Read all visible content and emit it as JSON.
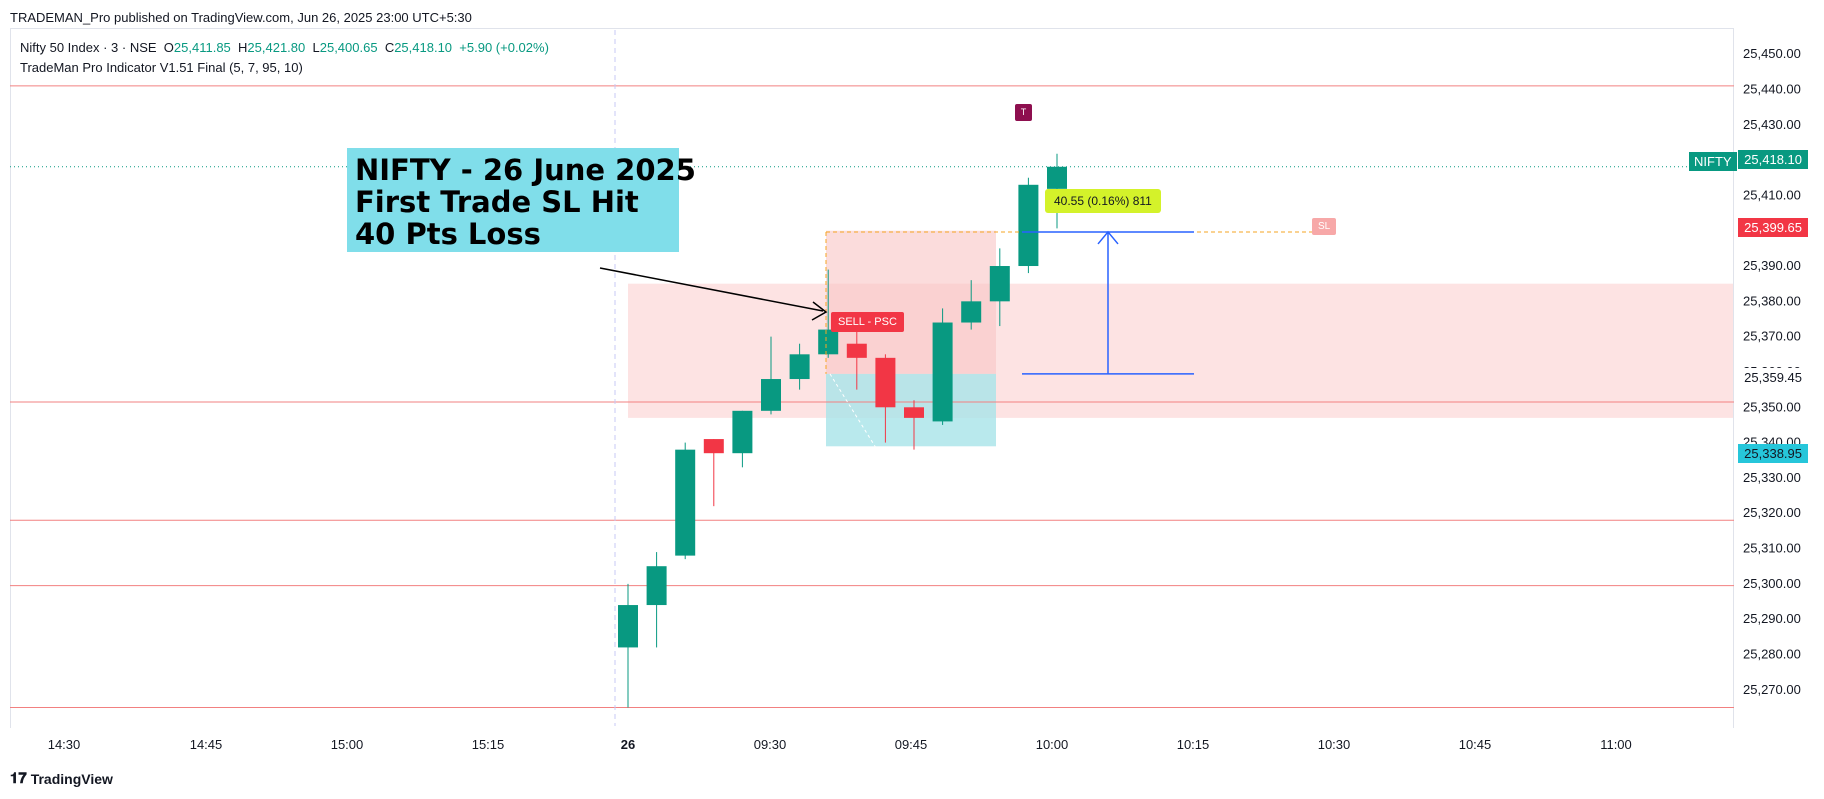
{
  "header": {
    "published_line": "TRADEMAN_Pro published on TradingView.com, Jun 26, 2025 23:00 UTC+5:30"
  },
  "legend": {
    "symbol": "Nifty 50 Index · 3 · NSE",
    "o_label": "O",
    "o_value": "25,411.85",
    "h_label": "H",
    "h_value": "25,421.80",
    "l_label": "L",
    "l_value": "25,400.65",
    "c_label": "C",
    "c_value": "25,418.10",
    "change": "+5.90 (+0.02%)",
    "indicator": "TradeMan Pro Indicator V1.51 Final (5, 7, 95, 10)"
  },
  "annotation": {
    "line1": "NIFTY - 26 June 2025",
    "line2": "First Trade SL Hit",
    "line3": "40 Pts Loss",
    "bg_color": "#80deea"
  },
  "tags": {
    "sell": "SELL - PSC",
    "measure": "40.55 (0.16%) 811",
    "t_marker": "T",
    "sl": "SL",
    "symbol_tag": "NIFTY",
    "last_price": "25,418.10",
    "sl_price": "25,399.65",
    "entry_price": "25,359.45",
    "target_price": "25,338.95"
  },
  "footer": {
    "brand": "TradingView"
  },
  "colors": {
    "up": "#089981",
    "down": "#f23645",
    "level_line": "#f28080",
    "zone_fill": "#fde3e3",
    "target_zone": "#a8e3e8",
    "measure_blue": "#2962ff"
  },
  "chart_data": {
    "type": "candlestick",
    "ylim": [
      25264,
      25454
    ],
    "y_ticks": [
      25270,
      25280,
      25290,
      25300,
      25310,
      25320,
      25330,
      25340,
      25350,
      25360,
      25370,
      25380,
      25390,
      25400,
      25410,
      25420,
      25430,
      25440,
      25450
    ],
    "y_tick_labels": [
      "25,270.00",
      "25,280.00",
      "25,290.00",
      "25,300.00",
      "25,310.00",
      "25,320.00",
      "25,330.00",
      "25,340.00",
      "25,350.00",
      "25,360.00",
      "25,370.00",
      "25,380.00",
      "25,390.00",
      "25,400.00",
      "25,410.00",
      "25,420.00",
      "25,430.00",
      "25,440.00",
      "25,450.00"
    ],
    "x_tick_labels": [
      "14:30",
      "14:45",
      "15:00",
      "15:15",
      "26",
      "09:30",
      "09:45",
      "10:00",
      "10:15",
      "10:30",
      "10:45",
      "11:00"
    ],
    "horizontal_levels": [
      25441,
      25351.5,
      25318,
      25299.5,
      25265
    ],
    "candles": [
      {
        "o": 25282,
        "h": 25300,
        "l": 25265,
        "c": 25294
      },
      {
        "o": 25294,
        "h": 25309,
        "l": 25282,
        "c": 25305
      },
      {
        "o": 25308,
        "h": 25340,
        "l": 25307,
        "c": 25338
      },
      {
        "o": 25341,
        "h": 25341,
        "l": 25322,
        "c": 25337
      },
      {
        "o": 25337,
        "h": 25349,
        "l": 25333,
        "c": 25349
      },
      {
        "o": 25349,
        "h": 25370,
        "l": 25348,
        "c": 25358
      },
      {
        "o": 25358,
        "h": 25368,
        "l": 25355,
        "c": 25365
      },
      {
        "o": 25365,
        "h": 25389,
        "l": 25364,
        "c": 25372
      },
      {
        "o": 25368,
        "h": 25372,
        "l": 25355,
        "c": 25364
      },
      {
        "o": 25364,
        "h": 25365,
        "l": 25340,
        "c": 25350
      },
      {
        "o": 25350,
        "h": 25352,
        "l": 25338,
        "c": 25347
      },
      {
        "o": 25346,
        "h": 25378,
        "l": 25345,
        "c": 25374
      },
      {
        "o": 25374,
        "h": 25386,
        "l": 25372,
        "c": 25380
      },
      {
        "o": 25380,
        "h": 25395,
        "l": 25373,
        "c": 25390
      },
      {
        "o": 25390,
        "h": 25415,
        "l": 25388,
        "c": 25413
      },
      {
        "o": 25411.85,
        "h": 25421.8,
        "l": 25400.65,
        "c": 25418.1
      }
    ]
  }
}
